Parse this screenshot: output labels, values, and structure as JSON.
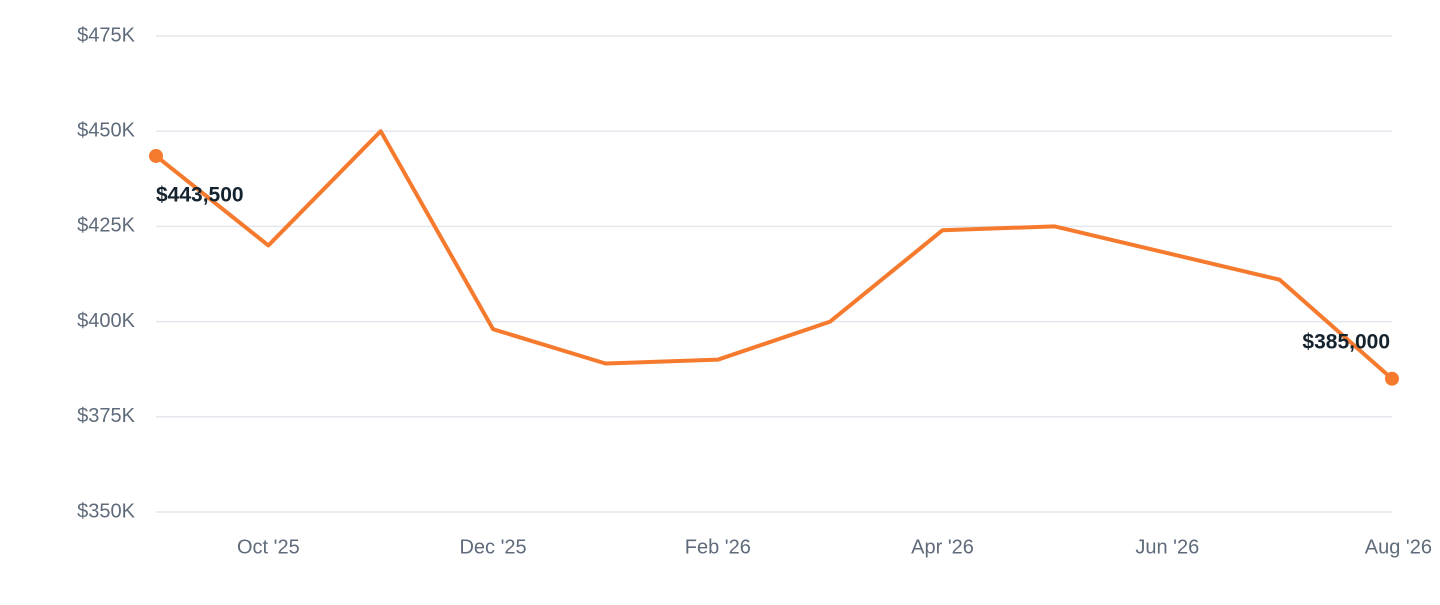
{
  "chart_data": {
    "type": "line",
    "categories": [
      null,
      "Oct '25",
      null,
      "Dec '25",
      null,
      "Feb '26",
      null,
      "Apr '26",
      null,
      "Jun '26",
      null,
      "Aug '26"
    ],
    "values": [
      443500,
      420000,
      450000,
      398000,
      389000,
      390000,
      400000,
      424000,
      425000,
      418000,
      411000,
      385000
    ],
    "value_labels": [
      "$443,500",
      null,
      null,
      null,
      null,
      null,
      null,
      null,
      null,
      null,
      null,
      "$385,000"
    ],
    "color": "#f57a2d",
    "ylim": [
      350000,
      475000
    ],
    "yticks": [
      {
        "value": 350000,
        "label": "$350K"
      },
      {
        "value": 375000,
        "label": "$375K"
      },
      {
        "value": 400000,
        "label": "$400K"
      },
      {
        "value": 425000,
        "label": "$425K"
      },
      {
        "value": 450000,
        "label": "$450K"
      },
      {
        "value": 475000,
        "label": "$475K"
      }
    ],
    "grid": true
  }
}
